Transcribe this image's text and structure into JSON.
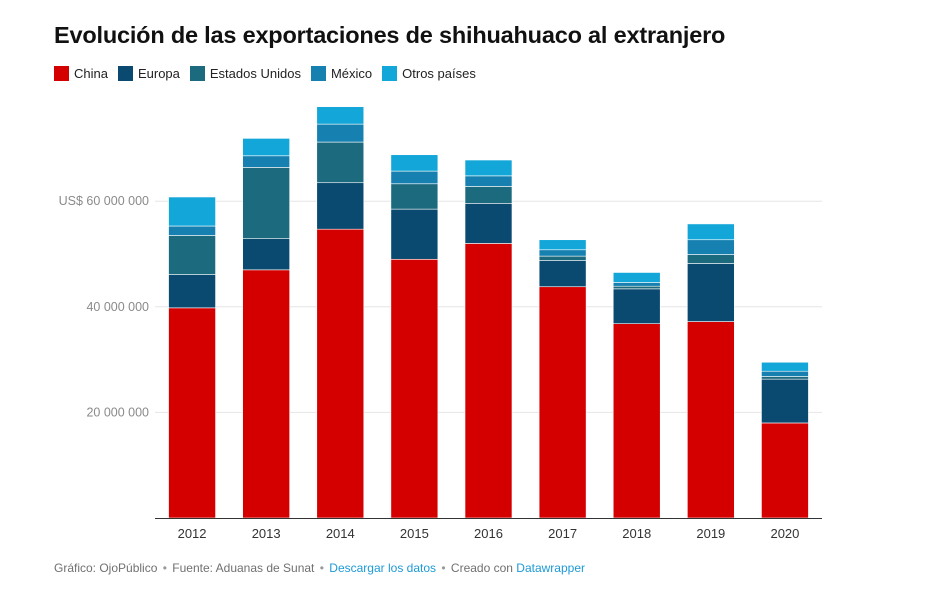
{
  "chart_data": {
    "type": "bar",
    "stacked": true,
    "title": "Evolución de las exportaciones de shihuahuaco al extranjero",
    "categories": [
      "2012",
      "2013",
      "2014",
      "2015",
      "2016",
      "2017",
      "2018",
      "2019",
      "2020"
    ],
    "series": [
      {
        "name": "China",
        "color": "#d40000",
        "values": [
          39800000,
          47000000,
          54700000,
          49000000,
          52000000,
          43800000,
          36800000,
          37200000,
          18000000
        ]
      },
      {
        "name": "Europa",
        "color": "#0a4a70",
        "values": [
          6300000,
          5900000,
          8800000,
          9500000,
          7600000,
          5000000,
          6600000,
          11000000,
          8300000
        ]
      },
      {
        "name": "Estados Unidos",
        "color": "#1c6a7e",
        "values": [
          7400000,
          13500000,
          7700000,
          4800000,
          3200000,
          800000,
          500000,
          1700000,
          500000
        ]
      },
      {
        "name": "México",
        "color": "#1681b0",
        "values": [
          1800000,
          2200000,
          3400000,
          2400000,
          2000000,
          1200000,
          700000,
          2800000,
          1000000
        ]
      },
      {
        "name": "Otros países",
        "color": "#12a6d9",
        "values": [
          5500000,
          3300000,
          3300000,
          3100000,
          3000000,
          1900000,
          1900000,
          3000000,
          1700000
        ]
      }
    ],
    "yticks": [
      {
        "value": 20000000,
        "label": "20 000 000"
      },
      {
        "value": 40000000,
        "label": "40 000 000"
      },
      {
        "value": 60000000,
        "label": "US$ 60 000 000"
      }
    ],
    "ylim": [
      0,
      78000000
    ],
    "grid": true,
    "legend_position": "top-left"
  },
  "footer": {
    "credit": "Gráfico: OjoPúblico",
    "sep": "•",
    "source": "Fuente: Aduanas de Sunat",
    "download_link": "Descargar los datos",
    "created": "Creado con",
    "tool_link": "Datawrapper"
  }
}
